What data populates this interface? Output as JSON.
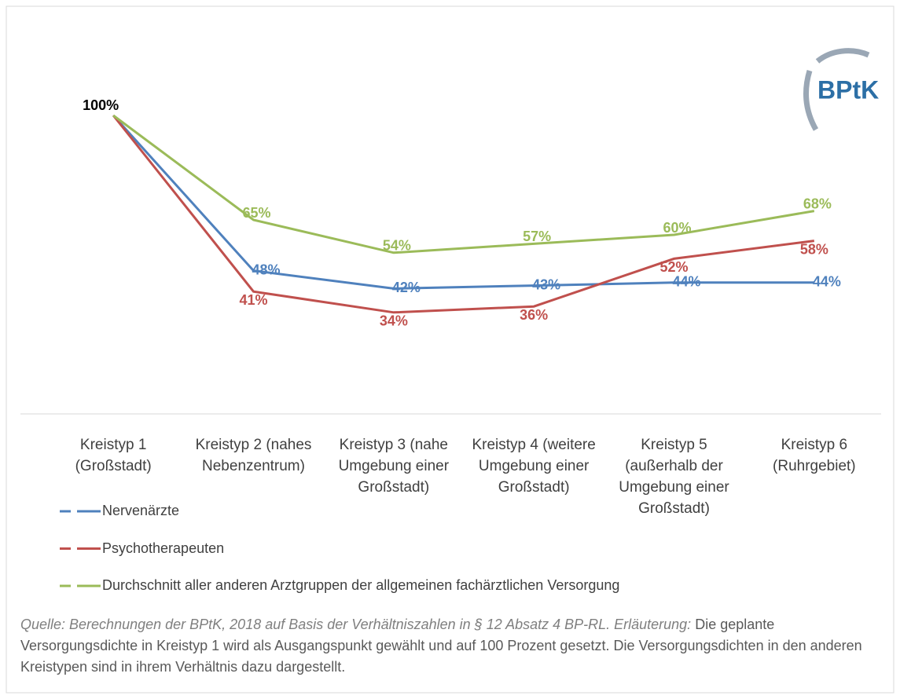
{
  "logo": "BPtK",
  "chart_data": {
    "type": "line",
    "categories": [
      "Kreistyp 1 (Großstadt)",
      "Kreistyp 2 (nahes Nebenzentrum)",
      "Kreistyp 3 (nahe Umgebung einer Großstadt)",
      "Kreistyp 4 (weitere Umgebung einer Großstadt)",
      "Kreistyp 5 (außerhalb der Umgebung einer Großstadt)",
      "Kreistyp 6 (Ruhrgebiet)"
    ],
    "series": [
      {
        "name": "Nervenärzte",
        "color": "#4f81bd",
        "values": [
          100,
          48,
          42,
          43,
          44,
          44
        ],
        "value_labels": [
          "100%",
          "48%",
          "42%",
          "43%",
          "44%",
          "44%"
        ]
      },
      {
        "name": "Psychotherapeuten",
        "color": "#c0504d",
        "values": [
          100,
          41,
          34,
          36,
          52,
          58
        ],
        "value_labels": [
          null,
          "41%",
          "34%",
          "36%",
          "52%",
          "58%"
        ]
      },
      {
        "name": "Durchschnitt aller anderen Arztgruppen der allgemeinen fachärztlichen Versorgung",
        "color": "#9bbb59",
        "values": [
          100,
          65,
          54,
          57,
          60,
          68
        ],
        "value_labels": [
          null,
          "65%",
          "54%",
          "57%",
          "60%",
          "68%"
        ]
      }
    ],
    "ylim": [
      0,
      100
    ]
  },
  "source": {
    "italic": "Quelle: Berechnungen der BPtK, 2018 auf Basis der Verhältniszahlen in § 12 Absatz 4 BP-RL. Erläuterung:",
    "text": "Die geplante Versorgungsdichte in Kreistyp 1 wird als Ausgangspunkt gewählt und auf 100 Prozent gesetzt. Die Versorgungsdichten in den anderen Kreistypen sind in ihrem Verhältnis dazu dargestellt."
  }
}
